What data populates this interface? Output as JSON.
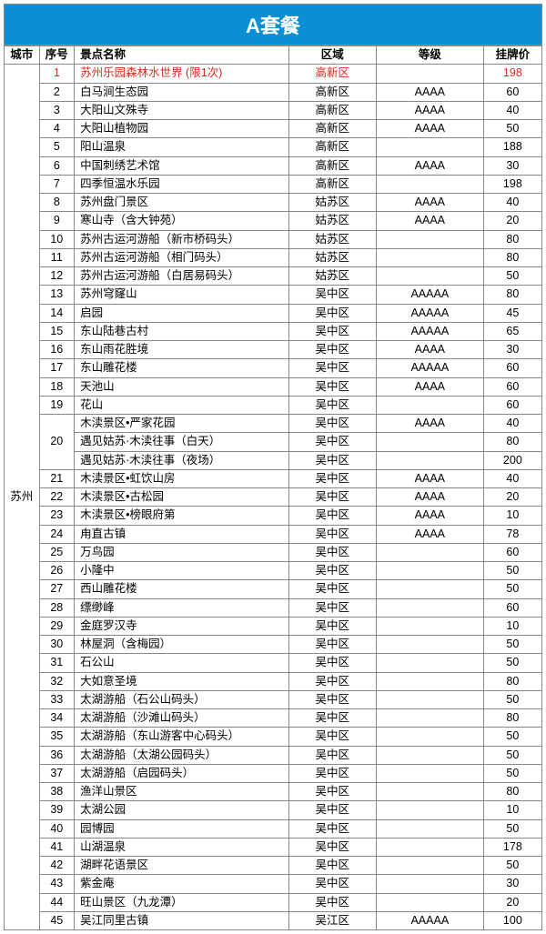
{
  "title": "A套餐",
  "headers": {
    "city": "城市",
    "seq": "序号",
    "name": "景点名称",
    "area": "区域",
    "grade": "等级",
    "price": "挂牌价"
  },
  "city": "苏州",
  "highlight_color": "#d82a1e",
  "title_bg": "#0b8fd4",
  "rows": [
    {
      "seq": "1",
      "name": "苏州乐园森林水世界 (限1次)",
      "area": "高新区",
      "grade": "",
      "price": "198",
      "highlight": true
    },
    {
      "seq": "2",
      "name": "白马涧生态园",
      "area": "高新区",
      "grade": "AAAA",
      "price": "60"
    },
    {
      "seq": "3",
      "name": "大阳山文殊寺",
      "area": "高新区",
      "grade": "AAAA",
      "price": "40"
    },
    {
      "seq": "4",
      "name": "大阳山植物园",
      "area": "高新区",
      "grade": "AAAA",
      "price": "50"
    },
    {
      "seq": "5",
      "name": "阳山温泉",
      "area": "高新区",
      "grade": "",
      "price": "188"
    },
    {
      "seq": "6",
      "name": "中国刺绣艺术馆",
      "area": "高新区",
      "grade": "AAAA",
      "price": "30"
    },
    {
      "seq": "7",
      "name": "四季恒温水乐园",
      "area": "高新区",
      "grade": "",
      "price": "198"
    },
    {
      "seq": "8",
      "name": "苏州盘门景区",
      "area": "姑苏区",
      "grade": "AAAA",
      "price": "40"
    },
    {
      "seq": "9",
      "name": "寒山寺（含大钟苑）",
      "area": "姑苏区",
      "grade": "AAAA",
      "price": "20"
    },
    {
      "seq": "10",
      "name": "苏州古运河游船（新市桥码头）",
      "area": "姑苏区",
      "grade": "",
      "price": "80"
    },
    {
      "seq": "11",
      "name": "苏州古运河游船（相门码头）",
      "area": "姑苏区",
      "grade": "",
      "price": "80"
    },
    {
      "seq": "12",
      "name": "苏州古运河游船（白居易码头）",
      "area": "姑苏区",
      "grade": "",
      "price": "50"
    },
    {
      "seq": "13",
      "name": "苏州穹窿山",
      "area": "吴中区",
      "grade": "AAAAA",
      "price": "80"
    },
    {
      "seq": "14",
      "name": "启园",
      "area": "吴中区",
      "grade": "AAAAA",
      "price": "45"
    },
    {
      "seq": "15",
      "name": "东山陆巷古村",
      "area": "吴中区",
      "grade": "AAAAA",
      "price": "65"
    },
    {
      "seq": "16",
      "name": "东山雨花胜境",
      "area": "吴中区",
      "grade": "AAAA",
      "price": "30"
    },
    {
      "seq": "17",
      "name": "东山雕花楼",
      "area": "吴中区",
      "grade": "AAAAA",
      "price": "60"
    },
    {
      "seq": "18",
      "name": "天池山",
      "area": "吴中区",
      "grade": "AAAA",
      "price": "60"
    },
    {
      "seq": "19",
      "name": "花山",
      "area": "吴中区",
      "grade": "",
      "price": "60"
    },
    {
      "seq": "20",
      "name": "木渎景区•严家花园",
      "area": "吴中区",
      "grade": "AAAA",
      "price": "40",
      "rowspan": 3
    },
    {
      "name": "遇见姑苏·木渎往事（白天）",
      "area": "吴中区",
      "grade": "",
      "price": "80",
      "subrow": true
    },
    {
      "name": "遇见姑苏·木渎往事（夜场）",
      "area": "吴中区",
      "grade": "",
      "price": "200",
      "subrow": true
    },
    {
      "seq": "21",
      "name": "木渎景区•虹饮山房",
      "area": "吴中区",
      "grade": "AAAA",
      "price": "40"
    },
    {
      "seq": "22",
      "name": "木渎景区•古松园",
      "area": "吴中区",
      "grade": "AAAA",
      "price": "20"
    },
    {
      "seq": "23",
      "name": "木渎景区•榜眼府第",
      "area": "吴中区",
      "grade": "AAAA",
      "price": "10"
    },
    {
      "seq": "24",
      "name": "甪直古镇",
      "area": "吴中区",
      "grade": "AAAA",
      "price": "78"
    },
    {
      "seq": "25",
      "name": "万鸟园",
      "area": "吴中区",
      "grade": "",
      "price": "60"
    },
    {
      "seq": "26",
      "name": "小隆中",
      "area": "吴中区",
      "grade": "",
      "price": "50"
    },
    {
      "seq": "27",
      "name": "西山雕花楼",
      "area": "吴中区",
      "grade": "",
      "price": "50"
    },
    {
      "seq": "28",
      "name": "缥缈峰",
      "area": "吴中区",
      "grade": "",
      "price": "60"
    },
    {
      "seq": "29",
      "name": "金庭罗汉寺",
      "area": "吴中区",
      "grade": "",
      "price": "10"
    },
    {
      "seq": "30",
      "name": "林屋洞（含梅园）",
      "area": "吴中区",
      "grade": "",
      "price": "50"
    },
    {
      "seq": "31",
      "name": "石公山",
      "area": "吴中区",
      "grade": "",
      "price": "50"
    },
    {
      "seq": "32",
      "name": "大如意圣境",
      "area": "吴中区",
      "grade": "",
      "price": "80"
    },
    {
      "seq": "33",
      "name": "太湖游船（石公山码头）",
      "area": "吴中区",
      "grade": "",
      "price": "50"
    },
    {
      "seq": "34",
      "name": "太湖游船（沙滩山码头）",
      "area": "吴中区",
      "grade": "",
      "price": "80"
    },
    {
      "seq": "35",
      "name": "太湖游船（东山游客中心码头）",
      "area": "吴中区",
      "grade": "",
      "price": "50"
    },
    {
      "seq": "36",
      "name": "太湖游船（太湖公园码头）",
      "area": "吴中区",
      "grade": "",
      "price": "50"
    },
    {
      "seq": "37",
      "name": "太湖游船（启园码头）",
      "area": "吴中区",
      "grade": "",
      "price": "50"
    },
    {
      "seq": "38",
      "name": "渔洋山景区",
      "area": "吴中区",
      "grade": "",
      "price": "80"
    },
    {
      "seq": "39",
      "name": "太湖公园",
      "area": "吴中区",
      "grade": "",
      "price": "10"
    },
    {
      "seq": "40",
      "name": "园博园",
      "area": "吴中区",
      "grade": "",
      "price": "50"
    },
    {
      "seq": "41",
      "name": "山湖温泉",
      "area": "吴中区",
      "grade": "",
      "price": "178"
    },
    {
      "seq": "42",
      "name": "湖畔花语景区",
      "area": "吴中区",
      "grade": "",
      "price": "50"
    },
    {
      "seq": "43",
      "name": "紫金庵",
      "area": "吴中区",
      "grade": "",
      "price": "30"
    },
    {
      "seq": "44",
      "name": "旺山景区（九龙潭）",
      "area": "吴中区",
      "grade": "",
      "price": "20"
    },
    {
      "seq": "45",
      "name": "吴江同里古镇",
      "area": "吴江区",
      "grade": "AAAAA",
      "price": "100"
    }
  ]
}
